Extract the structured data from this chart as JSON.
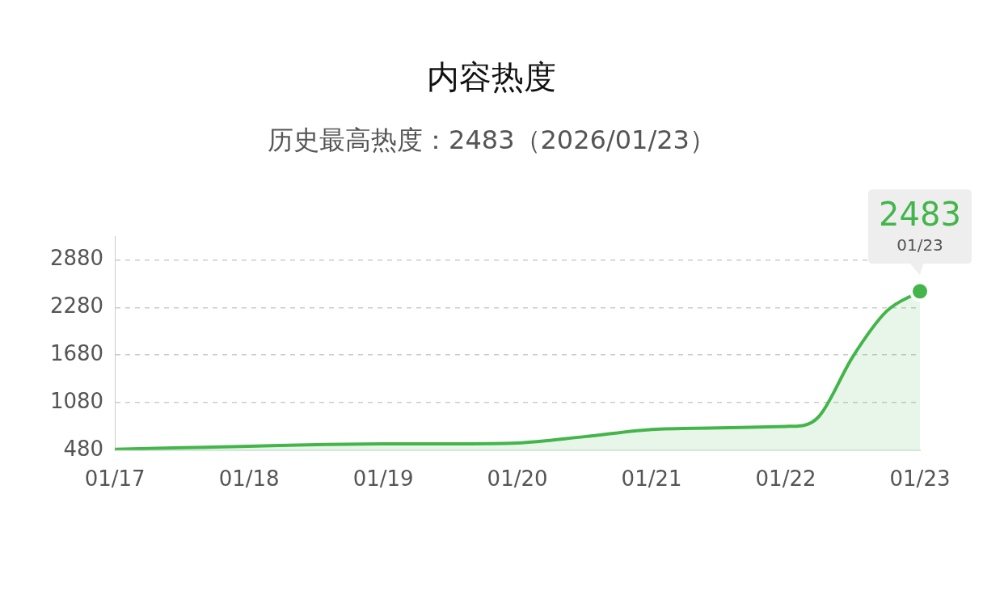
{
  "chart_data": {
    "type": "area",
    "title": "内容热度",
    "subtitle": "历史最高热度：2483（2026/01/23）",
    "x": [
      "--01-17",
      "--01-17T12:00",
      "--01-18",
      "--01-18T12:00",
      "--01-19",
      "--01-19T12:00",
      "--01-20",
      "--01-20T12:00",
      "--01-21",
      "--01-21T12:00",
      "--01-22",
      "--01-22T03:00",
      "--01-22T06:00",
      "--01-22T12:00",
      "--01-22T18:00",
      "--01-23"
    ],
    "series": [
      {
        "color": "#43b54a",
        "values": [
          490,
          510,
          530,
          550,
          560,
          560,
          570,
          650,
          740,
          760,
          780,
          790,
          910,
          1660,
          2230,
          2483
        ]
      }
    ],
    "xlim": [
      "--01-17",
      "--01-23"
    ],
    "xticks": [
      {
        "value": "--01-17",
        "label": "01/17"
      },
      {
        "value": "--01-18",
        "label": "01/18"
      },
      {
        "value": "--01-19",
        "label": "01/19"
      },
      {
        "value": "--01-20",
        "label": "01/20"
      },
      {
        "value": "--01-21",
        "label": "01/21"
      },
      {
        "value": "--01-22",
        "label": "01/22"
      },
      {
        "value": "--01-23",
        "label": "01/23"
      }
    ],
    "ylim": [
      480,
      3180
    ],
    "yticks": [
      480,
      1080,
      1680,
      2280,
      2880
    ],
    "grid": "y",
    "marker": "none",
    "line_style": "solid",
    "legend": false,
    "annotations": [
      {
        "text": "2483",
        "x": "--01-23",
        "y": 2483
      },
      {
        "text": "01/23",
        "x": "--01-23",
        "y": 2483
      }
    ]
  }
}
